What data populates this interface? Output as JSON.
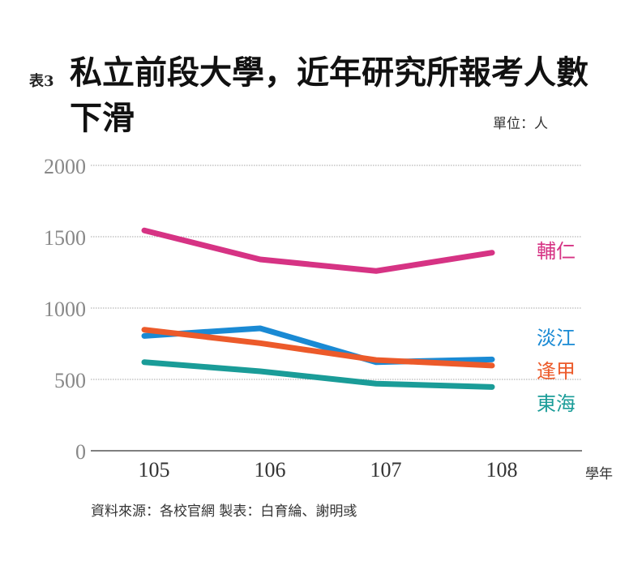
{
  "title_prefix": "表3",
  "title": "私立前段大學，近年研究所報考人數下滑",
  "unit": "單位：人",
  "source": "資料來源：各校官網  製表：白育綸、謝明彧",
  "chart_data": {
    "type": "line",
    "title": "私立前段大學，近年研究所報考人數下滑",
    "xlabel": "學年",
    "ylabel": "",
    "categories": [
      "105",
      "106",
      "107",
      "108"
    ],
    "ylim": [
      0,
      2000
    ],
    "yticks": [
      0,
      500,
      1000,
      1500,
      2000
    ],
    "grid": true,
    "legend": "right (labels at line ends)",
    "series": [
      {
        "name": "輔仁",
        "color": "#d63384",
        "values": [
          1544,
          1341,
          1260,
          1388
        ]
      },
      {
        "name": "淡江",
        "color": "#1a8ad4",
        "values": [
          805,
          858,
          621,
          640
        ]
      },
      {
        "name": "逢甲",
        "color": "#ec5a2a",
        "values": [
          848,
          754,
          636,
          597
        ]
      },
      {
        "name": "東海",
        "color": "#1a9c98",
        "values": [
          621,
          557,
          470,
          447
        ]
      }
    ]
  }
}
